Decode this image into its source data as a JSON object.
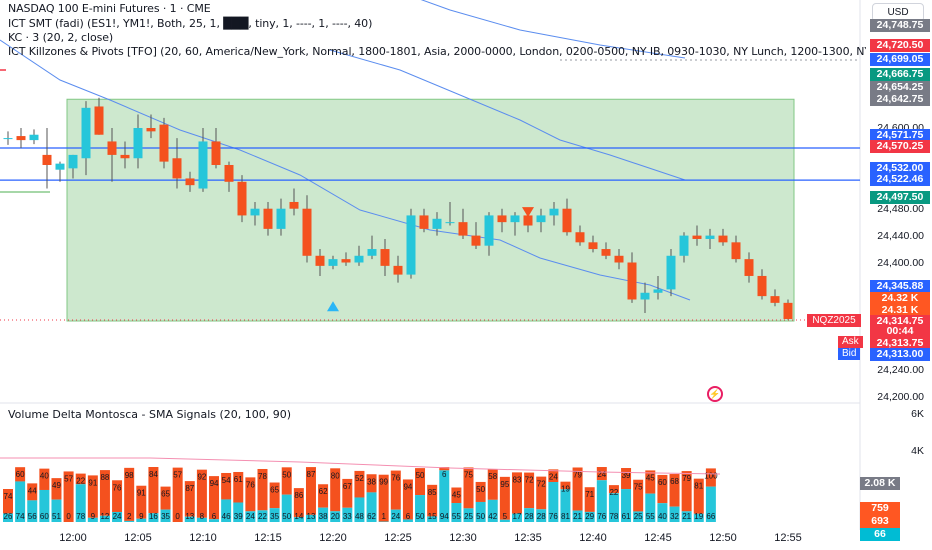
{
  "header": {
    "title": "NASDAQ 100 E-mini Futures · 1 · CME",
    "smt": "ICT SMT (fadi) (ES1!, YM1!, Both, 25, 1, ███, tiny, 1, ----, 1, ----, 40)",
    "kc": "KC · 3 (20, 2, close)",
    "killzones": "ICT Killzones & Pivots [TFO] (20, 60, America/New_York, Normal, 1800-1801, Asia, 2000-0000, London, 0200-0500, NY IB, 0930-1030, NY Lunch, 1200-1300, NY PM, 1330-1600)",
    "currency": "USD",
    "symbol_tag": "NQZ2025",
    "ask_label": "Ask",
    "bid_label": "Bid"
  },
  "volume_panel": {
    "title": "Volume Delta Montosca - SMA Signals (20, 100, 90)",
    "axis_ticks": [
      "6K",
      "4K",
      "2K"
    ],
    "value_boxes": [
      {
        "value": "2.08 K",
        "color": "#787b86"
      },
      {
        "value": "759",
        "color": "#ff5722"
      },
      {
        "value": "693",
        "color": "#ff5722"
      },
      {
        "value": "66",
        "color": "#00bcd4"
      }
    ]
  },
  "colors": {
    "up": "#26c6da",
    "down": "#f4511e",
    "killzone": "#c8e6c9",
    "keltner": "#5b8def",
    "level": "#2962ff",
    "red": "#f23645",
    "green": "#089981"
  },
  "chart_data": {
    "type": "candlestick",
    "ylim": [
      24200,
      24760
    ],
    "price_ticks": [
      24200,
      24240,
      24400,
      24440,
      24480,
      24600
    ],
    "price_tick_labels": [
      "24,200.00",
      "24,240.00",
      "24,400.00",
      "24,440.00",
      "24,480.00",
      "24,600.00"
    ],
    "time_ticks": [
      "12:00",
      "12:05",
      "12:10",
      "12:15",
      "12:20",
      "12:25",
      "12:30",
      "12:35",
      "12:40",
      "12:45",
      "12:50",
      "12:55"
    ],
    "candles": [
      {
        "t": "11:55",
        "o": 24585,
        "h": 24595,
        "l": 24575,
        "c": 24585
      },
      {
        "t": "11:56",
        "o": 24588,
        "h": 24600,
        "l": 24570,
        "c": 24582
      },
      {
        "t": "11:57",
        "o": 24582,
        "h": 24598,
        "l": 24576,
        "c": 24590
      },
      {
        "t": "11:58",
        "o": 24560,
        "h": 24600,
        "l": 24510,
        "c": 24545
      },
      {
        "t": "11:59",
        "o": 24538,
        "h": 24550,
        "l": 24520,
        "c": 24547
      },
      {
        "t": "12:00",
        "o": 24540,
        "h": 24560,
        "l": 24525,
        "c": 24560
      },
      {
        "t": "12:01",
        "o": 24555,
        "h": 24640,
        "l": 24530,
        "c": 24630
      },
      {
        "t": "12:02",
        "o": 24632,
        "h": 24645,
        "l": 24590,
        "c": 24590
      },
      {
        "t": "12:03",
        "o": 24580,
        "h": 24600,
        "l": 24520,
        "c": 24560
      },
      {
        "t": "12:04",
        "o": 24560,
        "h": 24580,
        "l": 24540,
        "c": 24555
      },
      {
        "t": "12:05",
        "o": 24555,
        "h": 24620,
        "l": 24540,
        "c": 24600
      },
      {
        "t": "12:06",
        "o": 24600,
        "h": 24620,
        "l": 24585,
        "c": 24595
      },
      {
        "t": "12:07",
        "o": 24605,
        "h": 24615,
        "l": 24540,
        "c": 24550
      },
      {
        "t": "12:08",
        "o": 24555,
        "h": 24585,
        "l": 24510,
        "c": 24525
      },
      {
        "t": "12:09",
        "o": 24525,
        "h": 24535,
        "l": 24505,
        "c": 24515
      },
      {
        "t": "12:10",
        "o": 24510,
        "h": 24600,
        "l": 24505,
        "c": 24580
      },
      {
        "t": "12:11",
        "o": 24580,
        "h": 24600,
        "l": 24540,
        "c": 24545
      },
      {
        "t": "12:12",
        "o": 24545,
        "h": 24550,
        "l": 24505,
        "c": 24520
      },
      {
        "t": "12:13",
        "o": 24520,
        "h": 24530,
        "l": 24460,
        "c": 24470
      },
      {
        "t": "12:14",
        "o": 24470,
        "h": 24490,
        "l": 24455,
        "c": 24480
      },
      {
        "t": "12:15",
        "o": 24480,
        "h": 24490,
        "l": 24440,
        "c": 24450
      },
      {
        "t": "12:16",
        "o": 24450,
        "h": 24495,
        "l": 24440,
        "c": 24480
      },
      {
        "t": "12:17",
        "o": 24490,
        "h": 24510,
        "l": 24470,
        "c": 24480
      },
      {
        "t": "12:18",
        "o": 24480,
        "h": 24500,
        "l": 24400,
        "c": 24410
      },
      {
        "t": "12:19",
        "o": 24410,
        "h": 24420,
        "l": 24380,
        "c": 24395
      },
      {
        "t": "12:20",
        "o": 24395,
        "h": 24410,
        "l": 24390,
        "c": 24405
      },
      {
        "t": "12:21",
        "o": 24405,
        "h": 24415,
        "l": 24395,
        "c": 24400
      },
      {
        "t": "12:22",
        "o": 24400,
        "h": 24425,
        "l": 24395,
        "c": 24410
      },
      {
        "t": "12:23",
        "o": 24410,
        "h": 24440,
        "l": 24405,
        "c": 24420
      },
      {
        "t": "12:24",
        "o": 24420,
        "h": 24435,
        "l": 24380,
        "c": 24395
      },
      {
        "t": "12:25",
        "o": 24395,
        "h": 24410,
        "l": 24370,
        "c": 24382
      },
      {
        "t": "12:26",
        "o": 24382,
        "h": 24480,
        "l": 24376,
        "c": 24470
      },
      {
        "t": "12:27",
        "o": 24470,
        "h": 24480,
        "l": 24445,
        "c": 24450
      },
      {
        "t": "12:28",
        "o": 24450,
        "h": 24475,
        "l": 24440,
        "c": 24465
      },
      {
        "t": "12:29",
        "o": 24460,
        "h": 24490,
        "l": 24455,
        "c": 24460
      },
      {
        "t": "12:30",
        "o": 24460,
        "h": 24480,
        "l": 24435,
        "c": 24440
      },
      {
        "t": "12:31",
        "o": 24440,
        "h": 24460,
        "l": 24420,
        "c": 24425
      },
      {
        "t": "12:32",
        "o": 24425,
        "h": 24475,
        "l": 24410,
        "c": 24470
      },
      {
        "t": "12:33",
        "o": 24470,
        "h": 24480,
        "l": 24445,
        "c": 24460
      },
      {
        "t": "12:34",
        "o": 24460,
        "h": 24475,
        "l": 24440,
        "c": 24470
      },
      {
        "t": "12:35",
        "o": 24470,
        "h": 24480,
        "l": 24445,
        "c": 24455
      },
      {
        "t": "12:36",
        "o": 24460,
        "h": 24480,
        "l": 24445,
        "c": 24470
      },
      {
        "t": "12:37",
        "o": 24470,
        "h": 24490,
        "l": 24455,
        "c": 24480
      },
      {
        "t": "12:38",
        "o": 24480,
        "h": 24495,
        "l": 24440,
        "c": 24445
      },
      {
        "t": "12:39",
        "o": 24445,
        "h": 24455,
        "l": 24425,
        "c": 24430
      },
      {
        "t": "12:40",
        "o": 24430,
        "h": 24440,
        "l": 24415,
        "c": 24420
      },
      {
        "t": "12:41",
        "o": 24420,
        "h": 24430,
        "l": 24405,
        "c": 24410
      },
      {
        "t": "12:42",
        "o": 24410,
        "h": 24420,
        "l": 24390,
        "c": 24400
      },
      {
        "t": "12:43",
        "o": 24400,
        "h": 24415,
        "l": 24340,
        "c": 24345
      },
      {
        "t": "12:44",
        "o": 24345,
        "h": 24370,
        "l": 24325,
        "c": 24355
      },
      {
        "t": "12:45",
        "o": 24355,
        "h": 24380,
        "l": 24345,
        "c": 24360
      },
      {
        "t": "12:46",
        "o": 24360,
        "h": 24420,
        "l": 24350,
        "c": 24410
      },
      {
        "t": "12:47",
        "o": 24410,
        "h": 24445,
        "l": 24400,
        "c": 24440
      },
      {
        "t": "12:48",
        "o": 24440,
        "h": 24455,
        "l": 24425,
        "c": 24435
      },
      {
        "t": "12:49",
        "o": 24435,
        "h": 24450,
        "l": 24420,
        "c": 24440
      },
      {
        "t": "12:50",
        "o": 24440,
        "h": 24450,
        "l": 24425,
        "c": 24430
      },
      {
        "t": "12:51",
        "o": 24430,
        "h": 24440,
        "l": 24400,
        "c": 24405
      },
      {
        "t": "12:52",
        "o": 24405,
        "h": 24415,
        "l": 24370,
        "c": 24380
      },
      {
        "t": "12:53",
        "o": 24380,
        "h": 24390,
        "l": 24345,
        "c": 24350
      },
      {
        "t": "12:54",
        "o": 24350,
        "h": 24360,
        "l": 24335,
        "c": 24340
      },
      {
        "t": "12:55",
        "o": 24340,
        "h": 24345,
        "l": 24315,
        "c": 24316
      }
    ],
    "keltner_upper": [
      24780,
      24760,
      24740,
      24720,
      24700
    ],
    "keltner_mid": [
      24640,
      24620,
      24590,
      24560,
      24530,
      24500,
      24470,
      24440,
      24420,
      24400,
      24385,
      24370,
      24355
    ],
    "keltner_lower": [
      24570,
      24540,
      24520,
      24500,
      24480,
      24460,
      24445,
      24430,
      24415,
      24400,
      24385,
      24370,
      24355
    ],
    "killzone": {
      "start": "12:00",
      "end": "12:55",
      "high": 24642.75,
      "low": 24313
    },
    "levels": [
      24570.25,
      24522.46
    ],
    "markers": [
      {
        "type": "up",
        "t": "12:20",
        "price": 24335
      },
      {
        "type": "down",
        "t": "12:35",
        "price": 24475
      }
    ],
    "price_labels": [
      {
        "value": "24,748.75",
        "color": "#787b86"
      },
      {
        "value": "24,720.50",
        "color": "#f23645"
      },
      {
        "value": "24,699.05",
        "color": "#2962ff"
      },
      {
        "value": "24,666.75",
        "color": "#089981"
      },
      {
        "value": "24,654.25",
        "color": "#787b86"
      },
      {
        "value": "24,642.75",
        "color": "#787b86"
      },
      {
        "value": "24,571.75",
        "color": "#2962ff"
      },
      {
        "value": "24,570.25",
        "color": "#f23645"
      },
      {
        "value": "24,532.00",
        "color": "#2962ff"
      },
      {
        "value": "24,522.46",
        "color": "#2962ff"
      },
      {
        "value": "24,497.50",
        "color": "#089981"
      },
      {
        "value": "24,345.88",
        "color": "#2962ff"
      },
      {
        "value": "24.32 K",
        "color": "#ff5722"
      },
      {
        "value": "24.31 K",
        "color": "#ff5722"
      },
      {
        "value": "24,314.75",
        "color": "#f23645"
      },
      {
        "value": "00:44",
        "color": "#f23645"
      },
      {
        "value": "24,313.75",
        "color": "#f23645"
      },
      {
        "value": "24,313.00",
        "color": "#2962ff"
      }
    ],
    "volume": {
      "buy": [
        26,
        74,
        56,
        60,
        51,
        0,
        78,
        9,
        12,
        24,
        2,
        9,
        16,
        35,
        0,
        13,
        8,
        6,
        46,
        39,
        24,
        22,
        35,
        50,
        14,
        13,
        38,
        20,
        33,
        48,
        62,
        1,
        24,
        6,
        50,
        15,
        94,
        55,
        25,
        50,
        42,
        5,
        17,
        28,
        28,
        76,
        81,
        21,
        29,
        76,
        78,
        61,
        25,
        55,
        40,
        32,
        21,
        19,
        66
      ],
      "sell": [
        74,
        60,
        44,
        40,
        49,
        57,
        22,
        91,
        88,
        76,
        98,
        91,
        84,
        65,
        57,
        87,
        92,
        94,
        54,
        61,
        76,
        78,
        65,
        50,
        86,
        87,
        62,
        80,
        67,
        52,
        38,
        99,
        76,
        94,
        50,
        85,
        6,
        45,
        75,
        50,
        58,
        95,
        83,
        72,
        72,
        24,
        19,
        79,
        71,
        24,
        22,
        39,
        75,
        45,
        60,
        68,
        79,
        81,
        100
      ]
    }
  }
}
